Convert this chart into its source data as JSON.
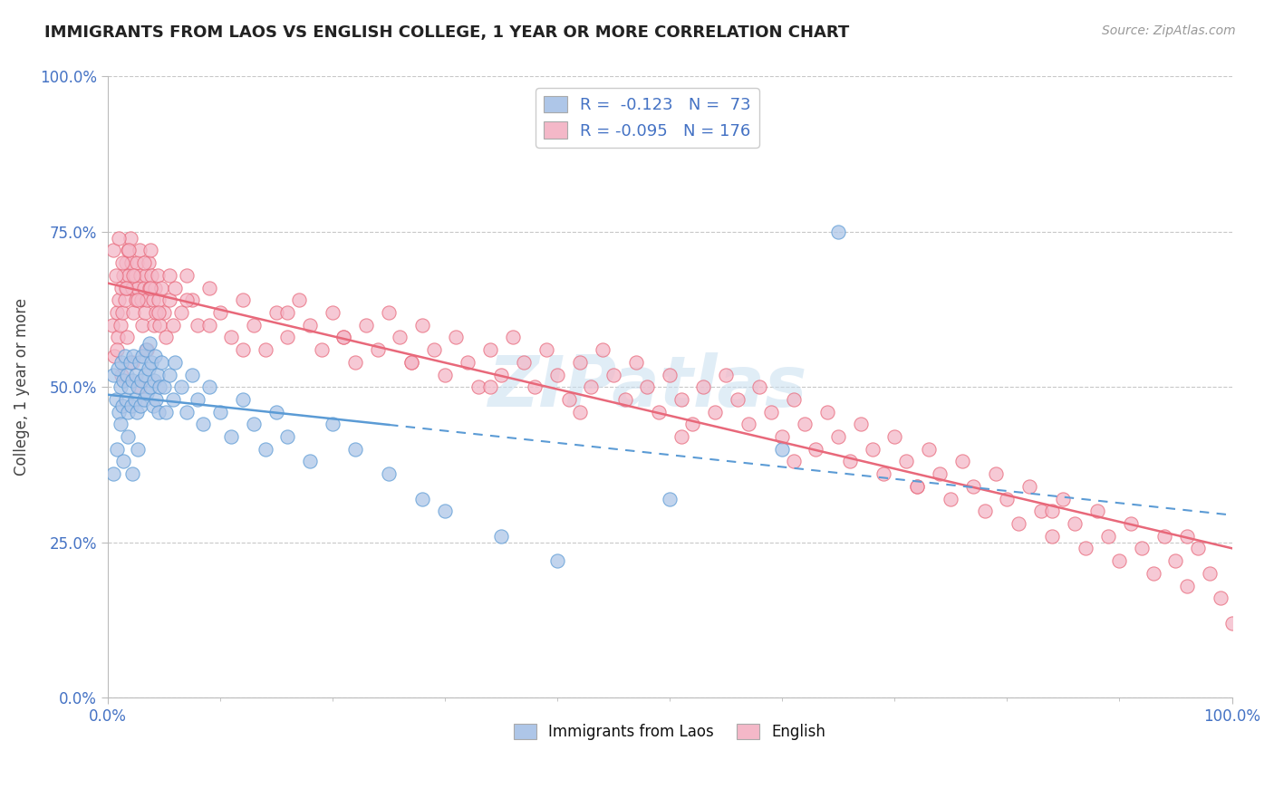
{
  "title": "IMMIGRANTS FROM LAOS VS ENGLISH COLLEGE, 1 YEAR OR MORE CORRELATION CHART",
  "source_text": "Source: ZipAtlas.com",
  "ylabel": "College, 1 year or more",
  "xlim": [
    0.0,
    1.0
  ],
  "ylim": [
    0.0,
    1.0
  ],
  "ytick_positions": [
    0.0,
    0.25,
    0.5,
    0.75,
    1.0
  ],
  "ytick_labels": [
    "0.0%",
    "25.0%",
    "50.0%",
    "75.0%",
    "100.0%"
  ],
  "color_blue": "#aec6e8",
  "color_pink": "#f4b8c8",
  "line_blue": "#5b9bd5",
  "line_pink": "#e8687a",
  "watermark": "ZIPatlas",
  "background_color": "#ffffff",
  "grid_color": "#c8c8c8",
  "blue_x": [
    0.005,
    0.007,
    0.009,
    0.01,
    0.011,
    0.012,
    0.013,
    0.014,
    0.015,
    0.016,
    0.017,
    0.018,
    0.019,
    0.02,
    0.021,
    0.022,
    0.023,
    0.024,
    0.025,
    0.026,
    0.027,
    0.028,
    0.029,
    0.03,
    0.031,
    0.032,
    0.033,
    0.034,
    0.035,
    0.036,
    0.037,
    0.038,
    0.039,
    0.04,
    0.041,
    0.042,
    0.043,
    0.044,
    0.045,
    0.046,
    0.048,
    0.05,
    0.052,
    0.055,
    0.058,
    0.06,
    0.065,
    0.07,
    0.075,
    0.08,
    0.085,
    0.09,
    0.1,
    0.11,
    0.12,
    0.13,
    0.14,
    0.15,
    0.16,
    0.18,
    0.2,
    0.22,
    0.25,
    0.28,
    0.3,
    0.35,
    0.4,
    0.5,
    0.6,
    0.65,
    0.005,
    0.008,
    0.011,
    0.014,
    0.018,
    0.022,
    0.027
  ],
  "blue_y": [
    0.52,
    0.48,
    0.53,
    0.46,
    0.5,
    0.54,
    0.47,
    0.51,
    0.55,
    0.48,
    0.52,
    0.46,
    0.5,
    0.54,
    0.47,
    0.51,
    0.55,
    0.48,
    0.52,
    0.46,
    0.5,
    0.54,
    0.47,
    0.51,
    0.55,
    0.48,
    0.52,
    0.56,
    0.49,
    0.53,
    0.57,
    0.5,
    0.54,
    0.47,
    0.51,
    0.55,
    0.48,
    0.52,
    0.46,
    0.5,
    0.54,
    0.5,
    0.46,
    0.52,
    0.48,
    0.54,
    0.5,
    0.46,
    0.52,
    0.48,
    0.44,
    0.5,
    0.46,
    0.42,
    0.48,
    0.44,
    0.4,
    0.46,
    0.42,
    0.38,
    0.44,
    0.4,
    0.36,
    0.32,
    0.3,
    0.26,
    0.22,
    0.32,
    0.4,
    0.75,
    0.36,
    0.4,
    0.44,
    0.38,
    0.42,
    0.36,
    0.4
  ],
  "pink_x": [
    0.004,
    0.006,
    0.008,
    0.009,
    0.01,
    0.011,
    0.012,
    0.013,
    0.014,
    0.015,
    0.016,
    0.017,
    0.018,
    0.019,
    0.02,
    0.021,
    0.022,
    0.023,
    0.024,
    0.025,
    0.026,
    0.027,
    0.028,
    0.029,
    0.03,
    0.031,
    0.032,
    0.033,
    0.034,
    0.035,
    0.036,
    0.037,
    0.038,
    0.039,
    0.04,
    0.041,
    0.042,
    0.043,
    0.044,
    0.045,
    0.046,
    0.048,
    0.05,
    0.052,
    0.055,
    0.058,
    0.06,
    0.065,
    0.07,
    0.075,
    0.08,
    0.09,
    0.1,
    0.11,
    0.12,
    0.13,
    0.14,
    0.15,
    0.16,
    0.17,
    0.18,
    0.19,
    0.2,
    0.21,
    0.22,
    0.23,
    0.24,
    0.25,
    0.26,
    0.27,
    0.28,
    0.29,
    0.3,
    0.31,
    0.32,
    0.33,
    0.34,
    0.35,
    0.36,
    0.37,
    0.38,
    0.39,
    0.4,
    0.41,
    0.42,
    0.43,
    0.44,
    0.45,
    0.46,
    0.47,
    0.48,
    0.49,
    0.5,
    0.51,
    0.52,
    0.53,
    0.54,
    0.55,
    0.56,
    0.57,
    0.58,
    0.59,
    0.6,
    0.61,
    0.62,
    0.63,
    0.64,
    0.65,
    0.66,
    0.67,
    0.68,
    0.69,
    0.7,
    0.71,
    0.72,
    0.73,
    0.74,
    0.75,
    0.76,
    0.77,
    0.78,
    0.79,
    0.8,
    0.81,
    0.82,
    0.83,
    0.84,
    0.85,
    0.86,
    0.87,
    0.88,
    0.89,
    0.9,
    0.91,
    0.92,
    0.93,
    0.94,
    0.95,
    0.96,
    0.97,
    0.98,
    0.99,
    1.0,
    0.005,
    0.007,
    0.01,
    0.013,
    0.016,
    0.019,
    0.023,
    0.027,
    0.032,
    0.038,
    0.045,
    0.055,
    0.07,
    0.09,
    0.12,
    0.16,
    0.21,
    0.27,
    0.34,
    0.42,
    0.51,
    0.61,
    0.72,
    0.84,
    0.96,
    0.008,
    0.012,
    0.017,
    0.022,
    0.028,
    0.035
  ],
  "pink_y": [
    0.6,
    0.55,
    0.62,
    0.58,
    0.64,
    0.6,
    0.66,
    0.62,
    0.68,
    0.64,
    0.7,
    0.66,
    0.72,
    0.68,
    0.74,
    0.7,
    0.66,
    0.62,
    0.68,
    0.64,
    0.7,
    0.66,
    0.72,
    0.68,
    0.64,
    0.6,
    0.66,
    0.62,
    0.68,
    0.64,
    0.7,
    0.66,
    0.72,
    0.68,
    0.64,
    0.6,
    0.66,
    0.62,
    0.68,
    0.64,
    0.6,
    0.66,
    0.62,
    0.58,
    0.64,
    0.6,
    0.66,
    0.62,
    0.68,
    0.64,
    0.6,
    0.66,
    0.62,
    0.58,
    0.64,
    0.6,
    0.56,
    0.62,
    0.58,
    0.64,
    0.6,
    0.56,
    0.62,
    0.58,
    0.54,
    0.6,
    0.56,
    0.62,
    0.58,
    0.54,
    0.6,
    0.56,
    0.52,
    0.58,
    0.54,
    0.5,
    0.56,
    0.52,
    0.58,
    0.54,
    0.5,
    0.56,
    0.52,
    0.48,
    0.54,
    0.5,
    0.56,
    0.52,
    0.48,
    0.54,
    0.5,
    0.46,
    0.52,
    0.48,
    0.44,
    0.5,
    0.46,
    0.52,
    0.48,
    0.44,
    0.5,
    0.46,
    0.42,
    0.48,
    0.44,
    0.4,
    0.46,
    0.42,
    0.38,
    0.44,
    0.4,
    0.36,
    0.42,
    0.38,
    0.34,
    0.4,
    0.36,
    0.32,
    0.38,
    0.34,
    0.3,
    0.36,
    0.32,
    0.28,
    0.34,
    0.3,
    0.26,
    0.32,
    0.28,
    0.24,
    0.3,
    0.26,
    0.22,
    0.28,
    0.24,
    0.2,
    0.26,
    0.22,
    0.18,
    0.24,
    0.2,
    0.16,
    0.12,
    0.72,
    0.68,
    0.74,
    0.7,
    0.66,
    0.72,
    0.68,
    0.64,
    0.7,
    0.66,
    0.62,
    0.68,
    0.64,
    0.6,
    0.56,
    0.62,
    0.58,
    0.54,
    0.5,
    0.46,
    0.42,
    0.38,
    0.34,
    0.3,
    0.26,
    0.56,
    0.52,
    0.58,
    0.54,
    0.5,
    0.56
  ]
}
